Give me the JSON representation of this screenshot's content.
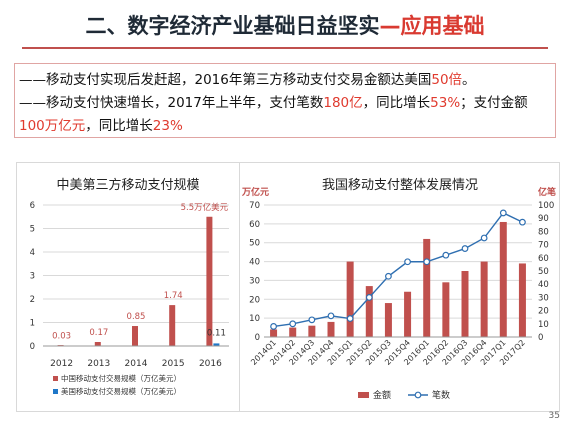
{
  "slide": {
    "title_main": "二、数字经济产业基础日益坚实",
    "title_accent": "—应用基础",
    "line1": {
      "a": "——移动支付实现后发赶超，2016年第三方移动支付交易金额达美国",
      "b": "50倍",
      "c": "。"
    },
    "line2": {
      "a": "——移动支付快速增长，2017年上半年，支付笔数",
      "b": "180亿",
      "c": "，同比增长",
      "d": "53%",
      "e": "；支付金额"
    },
    "line3": {
      "a": "100万亿元",
      "b": "，同比增长",
      "c": "23%"
    },
    "page_number": "35"
  },
  "chart_data": [
    {
      "type": "bar",
      "title": "中美第三方移动支付规模",
      "categories": [
        "2012",
        "2013",
        "2014",
        "2015",
        "2016"
      ],
      "series": [
        {
          "name": "中国移动支付交易规模（万亿美元）",
          "color": "#c0504d",
          "values": [
            0.03,
            0.17,
            0.85,
            1.74,
            5.5
          ]
        },
        {
          "name": "美国移动支付交易规模（万亿美元）",
          "color": "#1f77c8",
          "values": [
            null,
            null,
            null,
            null,
            0.11
          ]
        }
      ],
      "data_labels": [
        "0.03",
        "0.17",
        "0.85",
        "1.74",
        "5.5万亿美元",
        "0.11"
      ],
      "ylim": [
        0,
        6
      ],
      "yticks": [
        "0",
        "1",
        "2",
        "3",
        "4",
        "5",
        "6"
      ],
      "grid": true,
      "legend": "bottom"
    },
    {
      "type": "bar",
      "title": "我国移动支付整体发展情况",
      "categories": [
        "2014Q1",
        "2014Q2",
        "2014Q3",
        "2014Q4",
        "2015Q1",
        "2015Q2",
        "2015Q3",
        "2015Q4",
        "2016Q1",
        "2016Q2",
        "2016Q3",
        "2016Q4",
        "2017Q1",
        "2017Q2"
      ],
      "left_axis": {
        "unit": "万亿元",
        "ylim": [
          0,
          70
        ],
        "ticks": [
          "0",
          "10",
          "20",
          "30",
          "40",
          "50",
          "60",
          "70"
        ]
      },
      "right_axis": {
        "unit": "亿笔",
        "ylim": [
          0,
          100
        ],
        "ticks": [
          "0",
          "10",
          "20",
          "30",
          "40",
          "50",
          "60",
          "70",
          "80",
          "90",
          "100"
        ]
      },
      "series": [
        {
          "name": "金额",
          "type": "bar",
          "axis": "left",
          "color": "#c0504d",
          "values": [
            4,
            5,
            6,
            8,
            40,
            27,
            18,
            24,
            52,
            29,
            35,
            40,
            61,
            39
          ]
        },
        {
          "name": "笔数",
          "type": "line",
          "axis": "right",
          "color": "#2f6fb1",
          "values": [
            8,
            10,
            13,
            16,
            14,
            30,
            46,
            57,
            57,
            62,
            67,
            75,
            94,
            87
          ]
        }
      ],
      "grid": true,
      "legend": "bottom"
    }
  ]
}
